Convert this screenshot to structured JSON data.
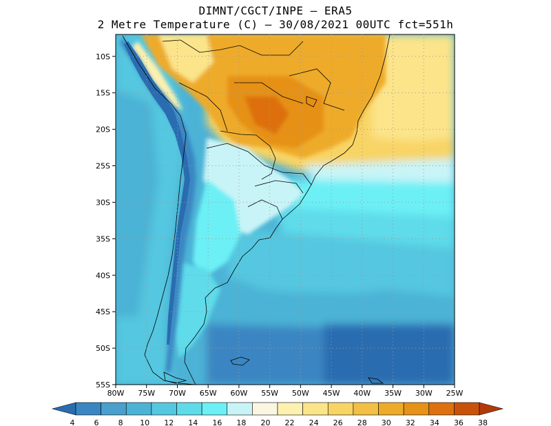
{
  "title": {
    "line1": "DIMNT/CGCT/INPE –  ERA5",
    "line2": "2 Metre Temperature (C) –  30/08/2021 00UTC fct=551h"
  },
  "map": {
    "lon_range": [
      -80,
      -25
    ],
    "lat_range": [
      -55,
      -7
    ],
    "lat_ticks": [
      "10S",
      "15S",
      "20S",
      "25S",
      "30S",
      "35S",
      "40S",
      "45S",
      "50S",
      "55S"
    ],
    "lat_values": [
      -10,
      -15,
      -20,
      -25,
      -30,
      -35,
      -40,
      -45,
      -50,
      -55
    ],
    "lon_ticks": [
      "80W",
      "75W",
      "70W",
      "65W",
      "60W",
      "55W",
      "50W",
      "45W",
      "40W",
      "35W",
      "30W",
      "25W"
    ],
    "lon_values": [
      -80,
      -75,
      -70,
      -65,
      -60,
      -55,
      -50,
      -45,
      -40,
      -35,
      -30,
      -25
    ]
  },
  "colorbar": {
    "labels": [
      "4",
      "6",
      "8",
      "10",
      "12",
      "14",
      "16",
      "18",
      "20",
      "22",
      "24",
      "26",
      "28",
      "30",
      "32",
      "34",
      "36",
      "38"
    ],
    "colors": [
      "#2a6cb0",
      "#3a86c2",
      "#4a9fcc",
      "#4cb3d6",
      "#55c7e0",
      "#5fdbea",
      "#6cf0f5",
      "#c9f4f7",
      "#fbf6e2",
      "#fdf1b0",
      "#fce48a",
      "#f8d465",
      "#f2c045",
      "#eeab2a",
      "#e69118",
      "#dd7010",
      "#c9520b",
      "#b33a08"
    ]
  }
}
